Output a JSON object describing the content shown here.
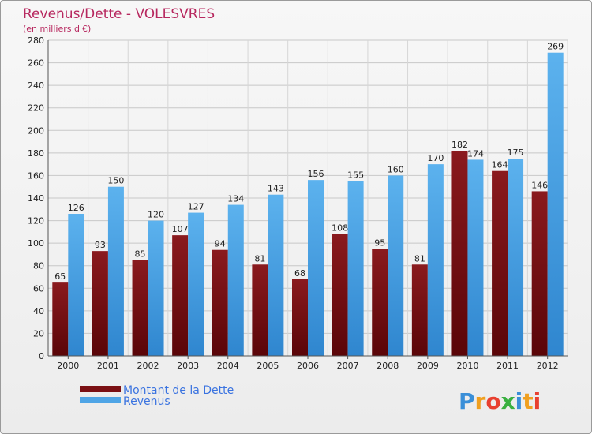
{
  "chart_data": {
    "type": "bar",
    "title": "Revenus/Dette - VOLESVRES",
    "subtitle": "(en milliers d'€)",
    "categories": [
      "2000",
      "2001",
      "2002",
      "2003",
      "2004",
      "2005",
      "2006",
      "2007",
      "2008",
      "2009",
      "2010",
      "2011",
      "2012"
    ],
    "series": [
      {
        "name": "Montant de la Dette",
        "color": "#7a1014",
        "values": [
          65,
          93,
          85,
          107,
          94,
          81,
          68,
          108,
          95,
          81,
          182,
          164,
          146
        ]
      },
      {
        "name": "Revenus",
        "color": "#4fa5e6",
        "values": [
          126,
          150,
          120,
          127,
          134,
          143,
          156,
          155,
          160,
          170,
          174,
          175,
          269
        ]
      }
    ],
    "ylim": [
      0,
      280
    ],
    "yticks": [
      0,
      20,
      40,
      60,
      80,
      100,
      120,
      140,
      160,
      180,
      200,
      220,
      240,
      260,
      280
    ],
    "grid": true,
    "legend_position": "bottom-left"
  },
  "logo": {
    "text": "Proxiti",
    "letters": [
      {
        "ch": "P",
        "color": "#3a8fd8"
      },
      {
        "ch": "r",
        "color": "#f0a020"
      },
      {
        "ch": "o",
        "color": "#e84030"
      },
      {
        "ch": "x",
        "color": "#3ab040"
      },
      {
        "ch": "i",
        "color": "#3a8fd8"
      },
      {
        "ch": "t",
        "color": "#f0a020"
      },
      {
        "ch": "i",
        "color": "#e84030"
      }
    ]
  }
}
